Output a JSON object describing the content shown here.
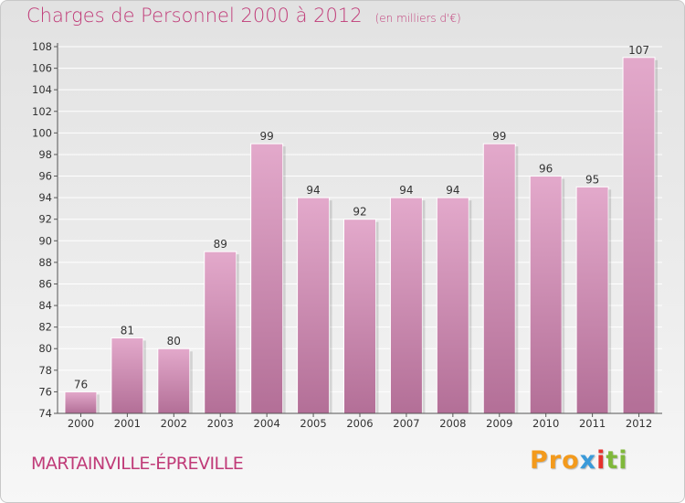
{
  "title": "Charges de Personnel 2000 à 2012",
  "subtitle": "(en milliers d'€)",
  "location": "MARTAINVILLE-ÉPREVILLE",
  "logo": {
    "part1": "Pro",
    "part2": "x",
    "part3": "i",
    "part4": "ti"
  },
  "colors": {
    "bar_top": "#e3a9cb",
    "bar_bottom": "#b36f97",
    "accent": "#c03b78"
  },
  "chart_data": {
    "type": "bar",
    "title": "Charges de Personnel 2000 à 2012",
    "ylabel": "en milliers d'€",
    "categories": [
      "2000",
      "2001",
      "2002",
      "2003",
      "2004",
      "2005",
      "2006",
      "2007",
      "2008",
      "2009",
      "2010",
      "2011",
      "2012"
    ],
    "values": [
      76,
      81,
      80,
      89,
      99,
      94,
      92,
      94,
      94,
      99,
      96,
      95,
      107
    ],
    "ylim": [
      74,
      108
    ],
    "yticks": [
      74,
      76,
      78,
      80,
      82,
      84,
      86,
      88,
      90,
      92,
      94,
      96,
      98,
      100,
      102,
      104,
      106,
      108
    ],
    "grid": true
  }
}
